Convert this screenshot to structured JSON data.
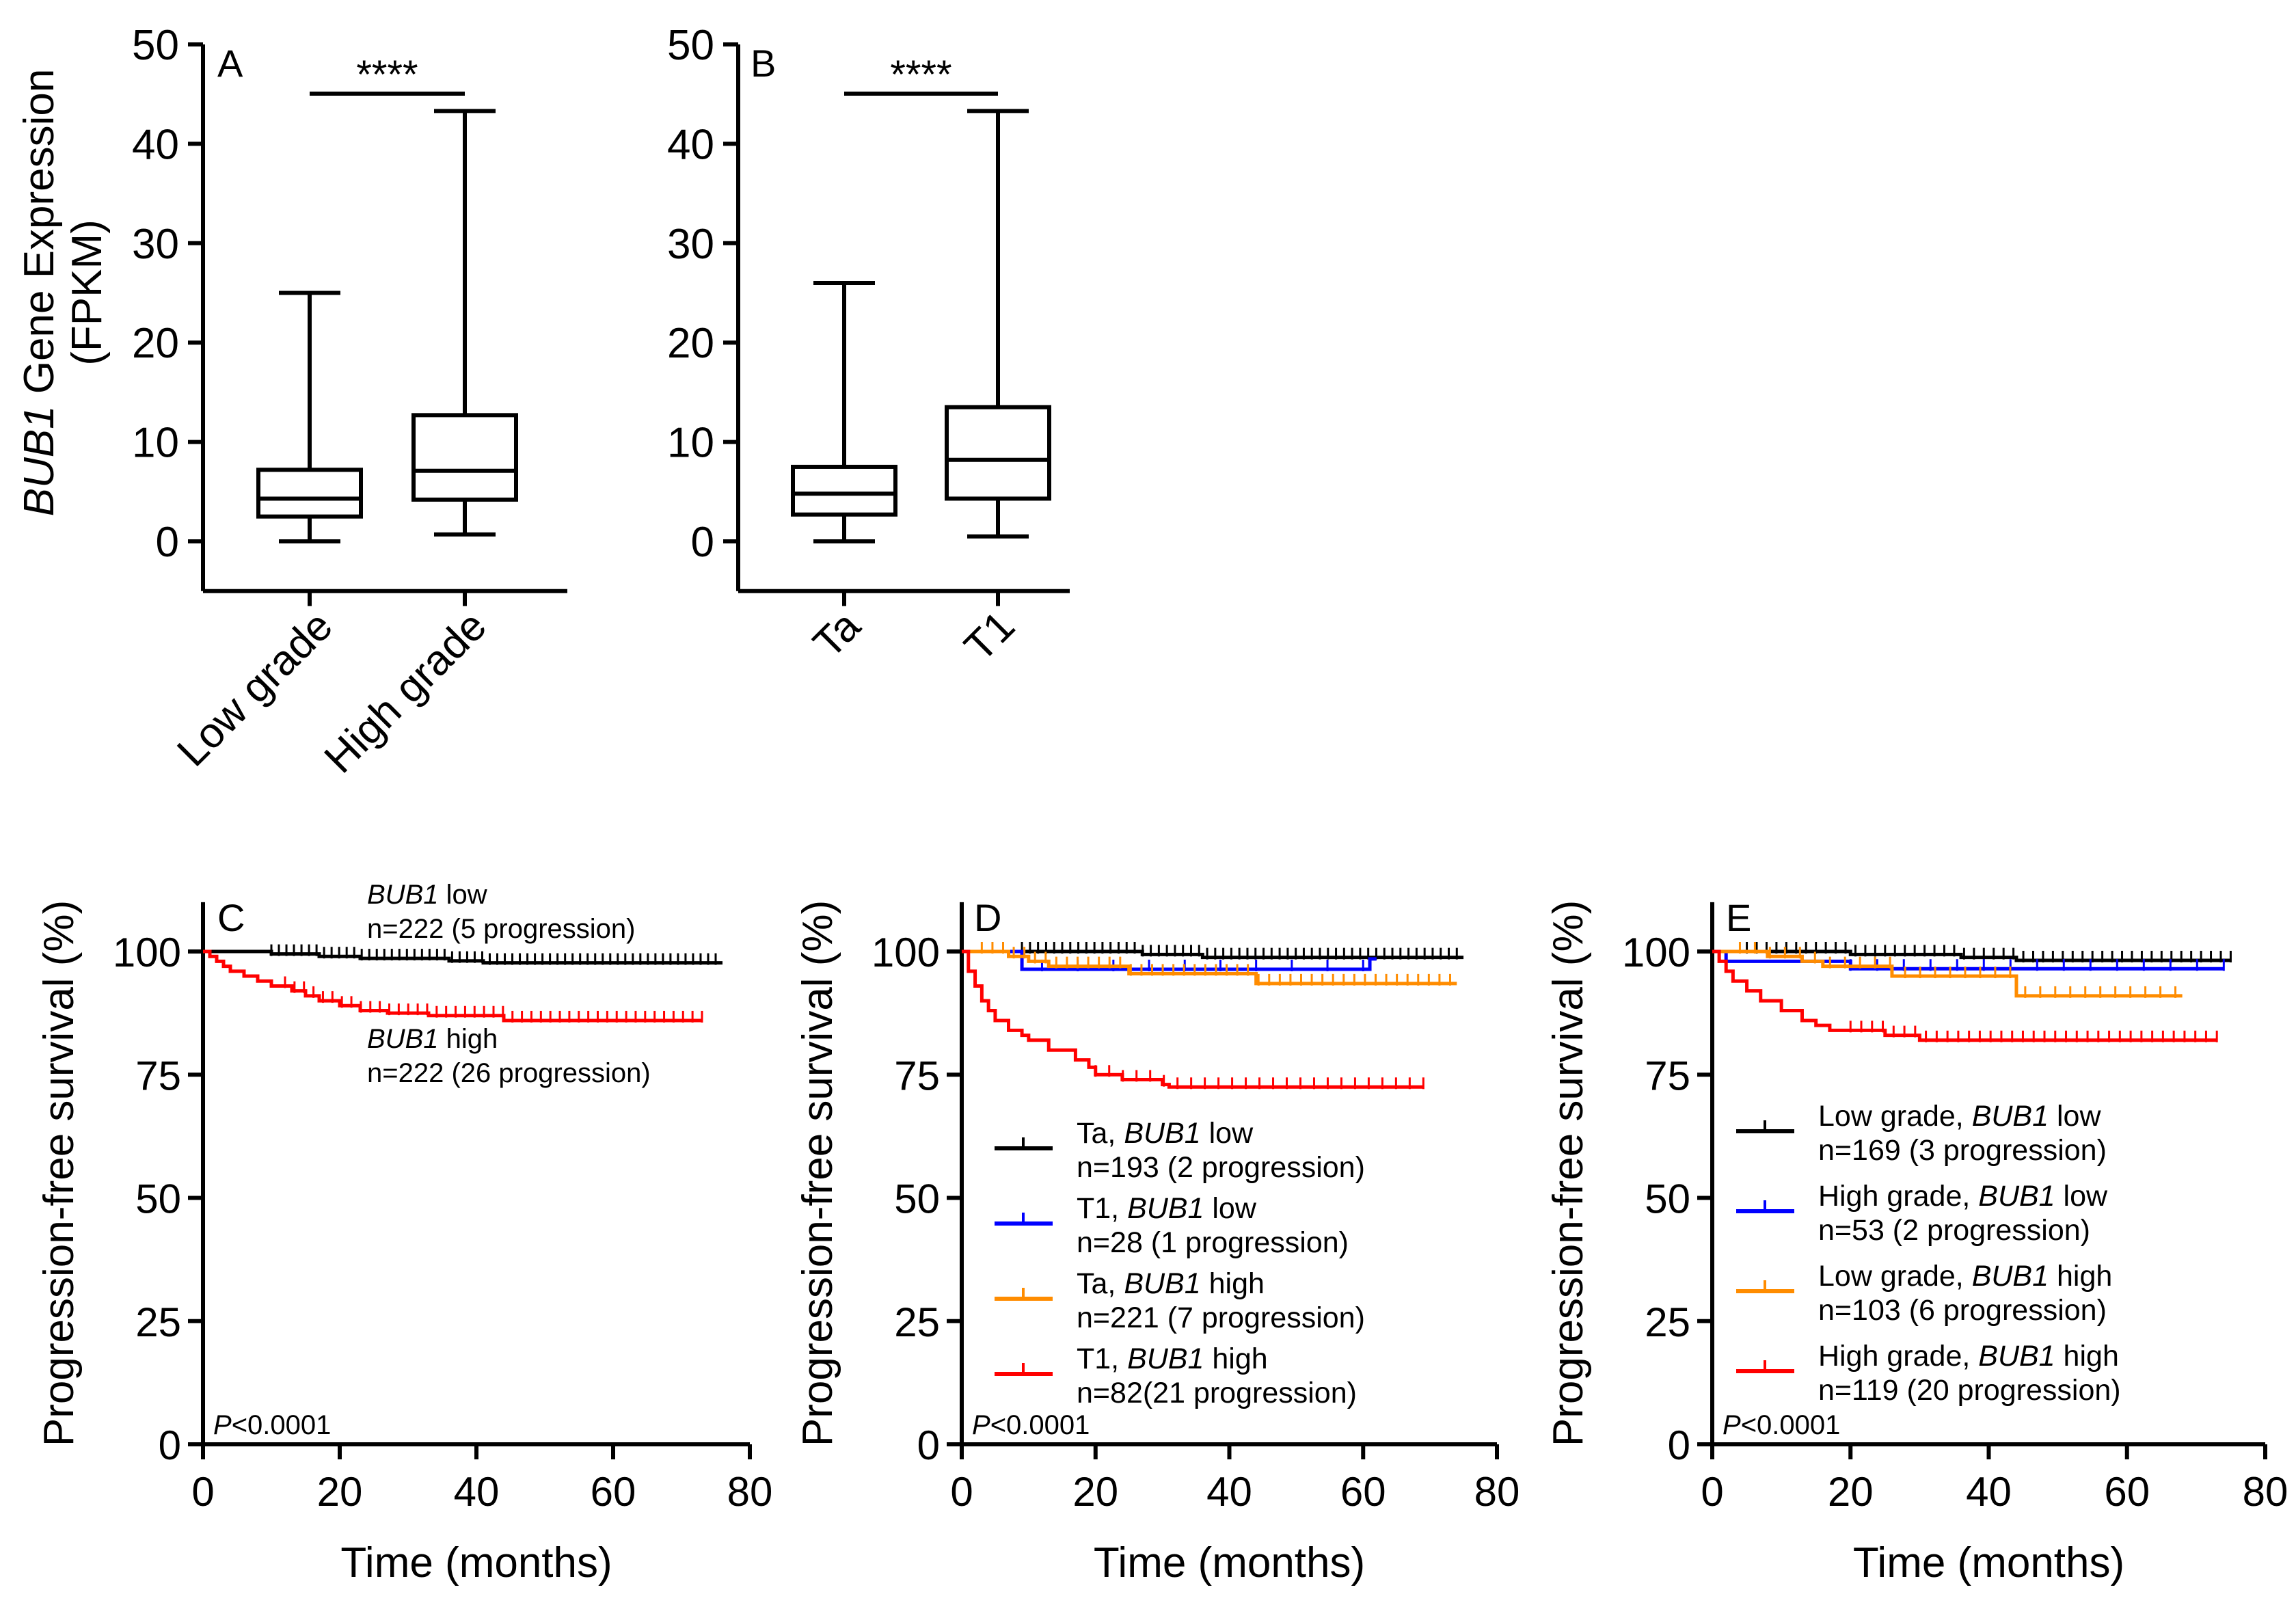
{
  "chart_data": [
    {
      "panel": "A",
      "type": "box",
      "ylabel_italic": "BUB1",
      "ylabel_rest": " Gene Expression",
      "ylabel_line2": "(FPKM)",
      "ylim": [
        -5,
        50
      ],
      "yticks": [
        0,
        10,
        20,
        30,
        40,
        50
      ],
      "significance": "****",
      "groups": [
        {
          "label": "Low grade",
          "min": 0,
          "q1": 2.5,
          "median": 4.3,
          "q3": 7.2,
          "max": 25
        },
        {
          "label": "High grade",
          "min": 0.7,
          "q1": 4.2,
          "median": 7.1,
          "q3": 12.7,
          "max": 43.3
        }
      ]
    },
    {
      "panel": "B",
      "type": "box",
      "ylim": [
        -5,
        50
      ],
      "yticks": [
        0,
        10,
        20,
        30,
        40,
        50
      ],
      "significance": "****",
      "groups": [
        {
          "label": "Ta",
          "min": 0,
          "q1": 2.7,
          "median": 4.8,
          "q3": 7.5,
          "max": 26
        },
        {
          "label": "T1",
          "min": 0.5,
          "q1": 4.3,
          "median": 8.2,
          "q3": 13.5,
          "max": 43.3
        }
      ]
    },
    {
      "panel": "C",
      "type": "km",
      "xlabel": "Time (months)",
      "ylabel": "Progression-free survival (%)",
      "xlim": [
        0,
        80
      ],
      "ylim": [
        0,
        110
      ],
      "xticks": [
        0,
        20,
        40,
        60,
        80
      ],
      "yticks": [
        0,
        25,
        50,
        75,
        100
      ],
      "pvalue_italic": "P",
      "pvalue_rest": "<0.0001",
      "series": [
        {
          "name_italic": "BUB1",
          "name_rest": " low",
          "n_text": "n=222 (5 progression)",
          "color": "#000000",
          "steps": [
            [
              0,
              100
            ],
            [
              10,
              99.5
            ],
            [
              17,
              99
            ],
            [
              23,
              98.6
            ],
            [
              36,
              98.1
            ],
            [
              41,
              97.7
            ],
            [
              76,
              97.7
            ]
          ],
          "censor_range": [
            10,
            75
          ],
          "censor_count": 60
        },
        {
          "name_italic": "BUB1",
          "name_rest": " high",
          "n_text": "n=222 (26 progression)",
          "color": "#ff0000",
          "steps": [
            [
              0,
              100
            ],
            [
              1,
              99
            ],
            [
              2,
              98
            ],
            [
              3,
              97
            ],
            [
              4,
              96
            ],
            [
              6,
              95
            ],
            [
              8,
              94
            ],
            [
              10,
              93
            ],
            [
              13,
              92
            ],
            [
              15,
              91
            ],
            [
              17,
              90
            ],
            [
              20,
              89
            ],
            [
              23,
              88
            ],
            [
              27,
              87.5
            ],
            [
              33,
              87
            ],
            [
              44,
              86
            ],
            [
              73,
              86
            ]
          ],
          "censor_range": [
            12,
            73
          ],
          "censor_count": 45
        }
      ]
    },
    {
      "panel": "D",
      "type": "km",
      "xlabel": "Time (months)",
      "ylabel": "Progression-free survival (%)",
      "xlim": [
        0,
        80
      ],
      "ylim": [
        0,
        110
      ],
      "xticks": [
        0,
        20,
        40,
        60,
        80
      ],
      "yticks": [
        0,
        25,
        50,
        75,
        100
      ],
      "pvalue_italic": "P",
      "pvalue_rest": "<0.0001",
      "series": [
        {
          "name_pre": "Ta, ",
          "name_italic": "BUB1",
          "name_rest": " low",
          "n_text": "n=193 (2 progression)",
          "color": "#000000",
          "steps": [
            [
              0,
              100
            ],
            [
              9,
              100
            ],
            [
              27,
              99.4
            ],
            [
              36,
              98.8
            ],
            [
              75,
              98.8
            ]
          ],
          "censor_range": [
            9,
            74
          ],
          "censor_count": 55
        },
        {
          "name_pre": "T1, ",
          "name_italic": "BUB1",
          "name_rest": " low",
          "n_text": "n=28 (1 progression)",
          "color": "#0000ff",
          "steps": [
            [
              0,
              100
            ],
            [
              9,
              96.4
            ],
            [
              61,
              96.4
            ],
            [
              61,
              98.5
            ],
            [
              62,
              98.5
            ]
          ],
          "censor_range": [
            12,
            60
          ],
          "censor_count": 10
        },
        {
          "name_pre": "Ta, ",
          "name_italic": "BUB1",
          "name_rest": " high",
          "n_text": "n=221 (7 progression)",
          "color": "#ff8c00",
          "steps": [
            [
              0,
              100
            ],
            [
              7,
              99
            ],
            [
              10,
              98
            ],
            [
              13,
              97
            ],
            [
              25,
              95.5
            ],
            [
              44,
              93.5
            ],
            [
              74,
              93.5
            ]
          ],
          "censor_range": [
            3,
            73
          ],
          "censor_count": 45
        },
        {
          "name_pre": "T1, ",
          "name_italic": "BUB1",
          "name_rest": " high",
          "n_text": "n=82(21 progression)",
          "color": "#ff0000",
          "steps": [
            [
              0,
              100
            ],
            [
              1,
              96
            ],
            [
              2,
              93
            ],
            [
              3,
              90
            ],
            [
              4,
              88
            ],
            [
              5,
              86
            ],
            [
              7,
              84
            ],
            [
              9,
              83
            ],
            [
              10,
              82
            ],
            [
              13,
              80
            ],
            [
              17,
              78
            ],
            [
              19,
              76.5
            ],
            [
              20,
              75
            ],
            [
              24,
              74
            ],
            [
              30,
              73
            ],
            [
              31,
              72.5
            ],
            [
              69,
              72.5
            ]
          ],
          "censor_range": [
            20,
            69
          ],
          "censor_count": 25
        }
      ]
    },
    {
      "panel": "E",
      "type": "km",
      "xlabel": "Time (months)",
      "ylabel": "Progression-free survival (%)",
      "xlim": [
        0,
        80
      ],
      "ylim": [
        0,
        110
      ],
      "xticks": [
        0,
        20,
        40,
        60,
        80
      ],
      "yticks": [
        0,
        25,
        50,
        75,
        100
      ],
      "pvalue_italic": "P",
      "pvalue_rest": "<0.0001",
      "series": [
        {
          "name_pre": "Low grade, ",
          "name_italic": "BUB1",
          "name_rest": " low",
          "n_text": "n=169 (3 progression)",
          "color": "#000000",
          "steps": [
            [
              0,
              100
            ],
            [
              20,
              99.4
            ],
            [
              36,
              98.8
            ],
            [
              44,
              98.2
            ],
            [
              75,
              98.2
            ]
          ],
          "censor_range": [
            5,
            75
          ],
          "censor_count": 50
        },
        {
          "name_pre": "High grade, ",
          "name_italic": "BUB1",
          "name_rest": " low",
          "n_text": "n=53 (2 progression)",
          "color": "#0000ff",
          "steps": [
            [
              0,
              100
            ],
            [
              2,
              98
            ],
            [
              20,
              96.5
            ],
            [
              74,
              96.5
            ]
          ],
          "censor_range": [
            20,
            74
          ],
          "censor_count": 15
        },
        {
          "name_pre": "Low grade, ",
          "name_italic": "BUB1",
          "name_rest": " high",
          "n_text": "n=103 (6 progression)",
          "color": "#ff8c00",
          "steps": [
            [
              0,
              100
            ],
            [
              8,
              99
            ],
            [
              13,
              98
            ],
            [
              16,
              97
            ],
            [
              26,
              95
            ],
            [
              44,
              91
            ],
            [
              68,
              91
            ]
          ],
          "censor_range": [
            4,
            67
          ],
          "censor_count": 30
        },
        {
          "name_pre": "High grade, ",
          "name_italic": "BUB1",
          "name_rest": " high",
          "n_text": "n=119 (20 progression)",
          "color": "#ff0000",
          "steps": [
            [
              0,
              100
            ],
            [
              1,
              98
            ],
            [
              2,
              96
            ],
            [
              3,
              94
            ],
            [
              5,
              92
            ],
            [
              7,
              90
            ],
            [
              10,
              88
            ],
            [
              13,
              86
            ],
            [
              15,
              85
            ],
            [
              17,
              84
            ],
            [
              25,
              83
            ],
            [
              30,
              82
            ],
            [
              73,
              82
            ]
          ],
          "censor_range": [
            20,
            73
          ],
          "censor_count": 35
        }
      ]
    }
  ]
}
